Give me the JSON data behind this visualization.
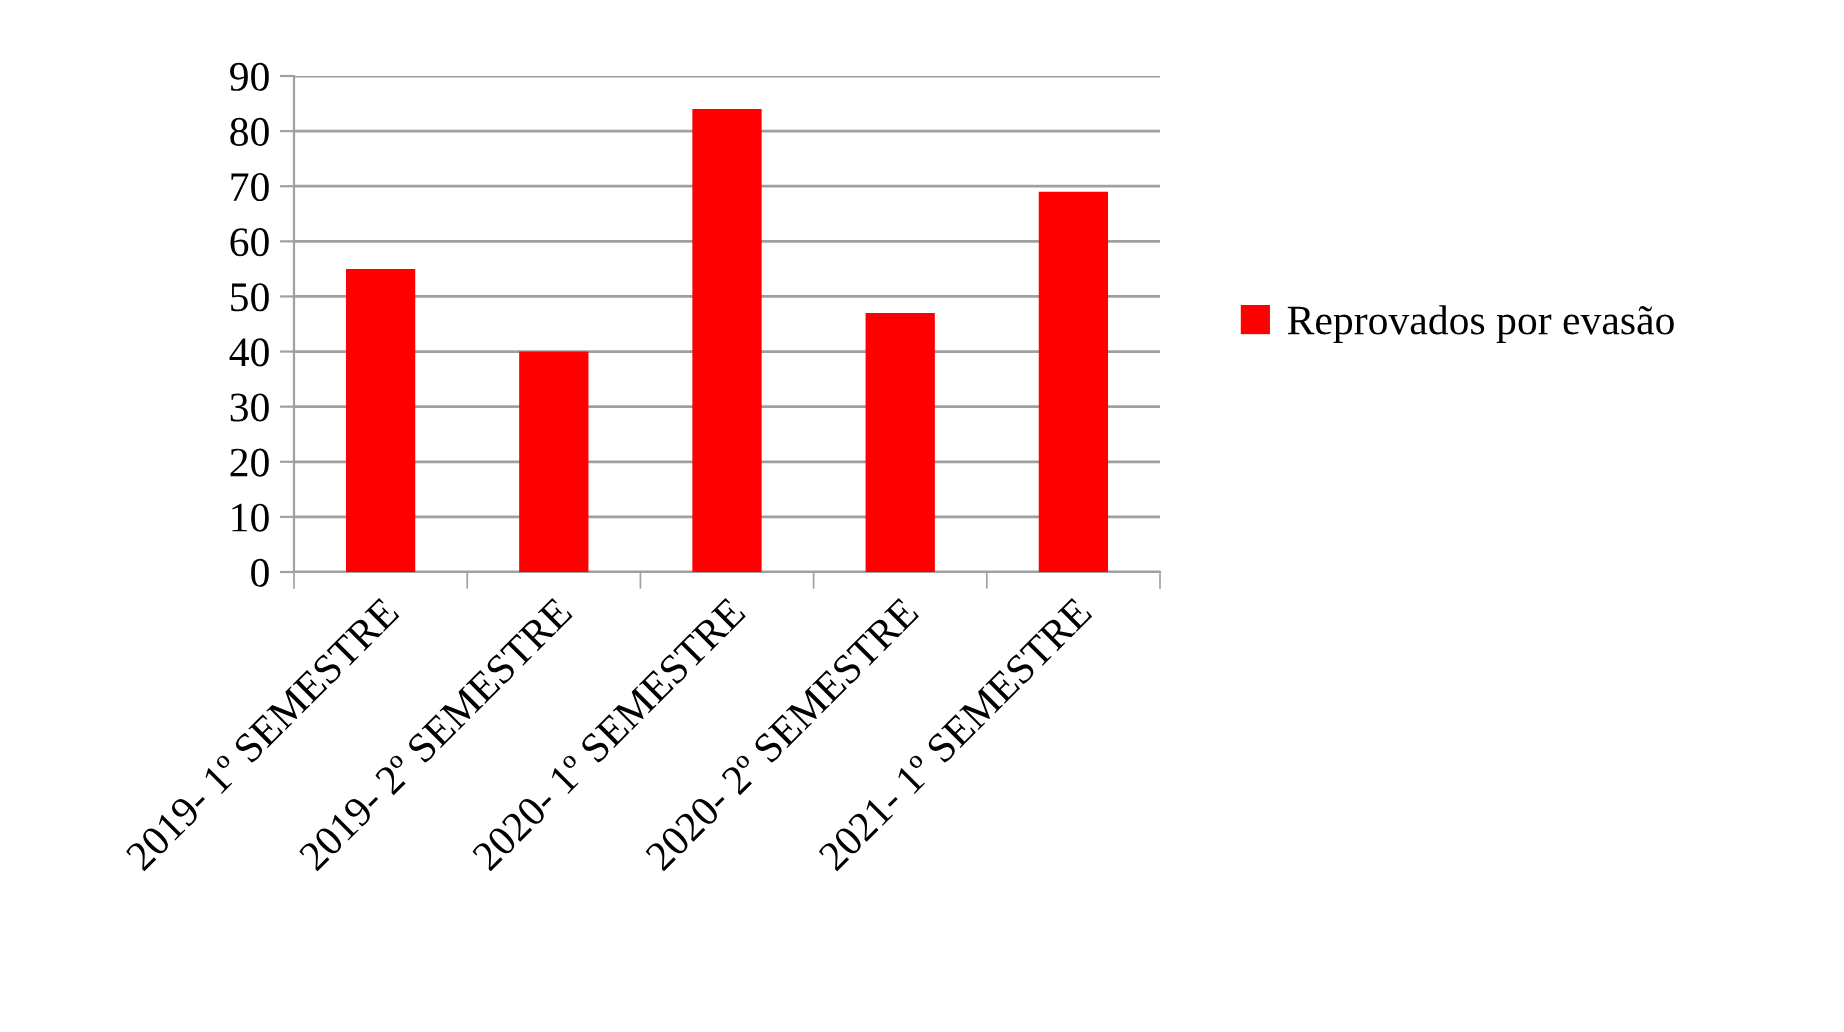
{
  "chart_data": {
    "type": "bar",
    "categories": [
      "2019- 1º SEMESTRE",
      "2019- 2º SEMESTRE",
      "2020- 1º SEMESTRE",
      "2020- 2º SEMESTRE",
      "2021- 1º SEMESTRE"
    ],
    "series": [
      {
        "name": "Reprovados por evasão",
        "color": "#ff0000",
        "values": [
          55,
          40,
          84,
          47,
          69
        ]
      }
    ],
    "ylim": [
      0,
      90
    ],
    "yticks": [
      0,
      10,
      20,
      30,
      40,
      50,
      60,
      70,
      80,
      90
    ],
    "grid": "y",
    "legend": "right"
  }
}
